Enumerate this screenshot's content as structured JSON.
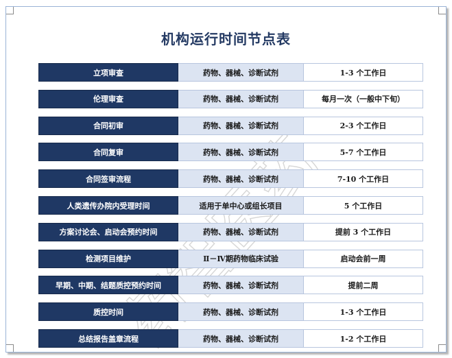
{
  "title": "机构运行时间节点表",
  "rows": [
    {
      "item": "立项审查",
      "scope": "药物、器械、诊断试剂",
      "time": "1-3 个工作日"
    },
    {
      "item": "伦理审查",
      "scope": "药物、器械、诊断试剂",
      "time": "每月一次（一般中下旬）"
    },
    {
      "item": "合同初审",
      "scope": "药物、器械、诊断试剂",
      "time": "2-3 个工作日"
    },
    {
      "item": "合同复审",
      "scope": "药物、器械、诊断试剂",
      "time": "5-7 个工作日"
    },
    {
      "item": "合同签审流程",
      "scope": "药物、器械、诊断试剂",
      "time": "7-10 个工作日"
    },
    {
      "item": "人类遗传办院内受理时间",
      "scope": "适用于单中心或组长项目",
      "time": "5 个工作日"
    },
    {
      "item": "方案讨论会、启动会预约时间",
      "scope": "药物、器械、诊断试剂",
      "time": "提前 3 个工作日"
    },
    {
      "item": "检测项目维护",
      "scope": "Ⅱ－Ⅳ期药物临床试验",
      "time": "启动会前一周"
    },
    {
      "item": "早期、中期、结题质控预约时间",
      "scope": "药物、器械、诊断试剂",
      "time": "提前二周"
    },
    {
      "item": "质控时间",
      "scope": "药物、器械、诊断试剂",
      "time": "1-3 个工作日"
    },
    {
      "item": "总结报告盖章流程",
      "scope": "药物、器械、诊断试剂",
      "time": "1-2 个工作日"
    }
  ],
  "watermark_text": "药智医药"
}
